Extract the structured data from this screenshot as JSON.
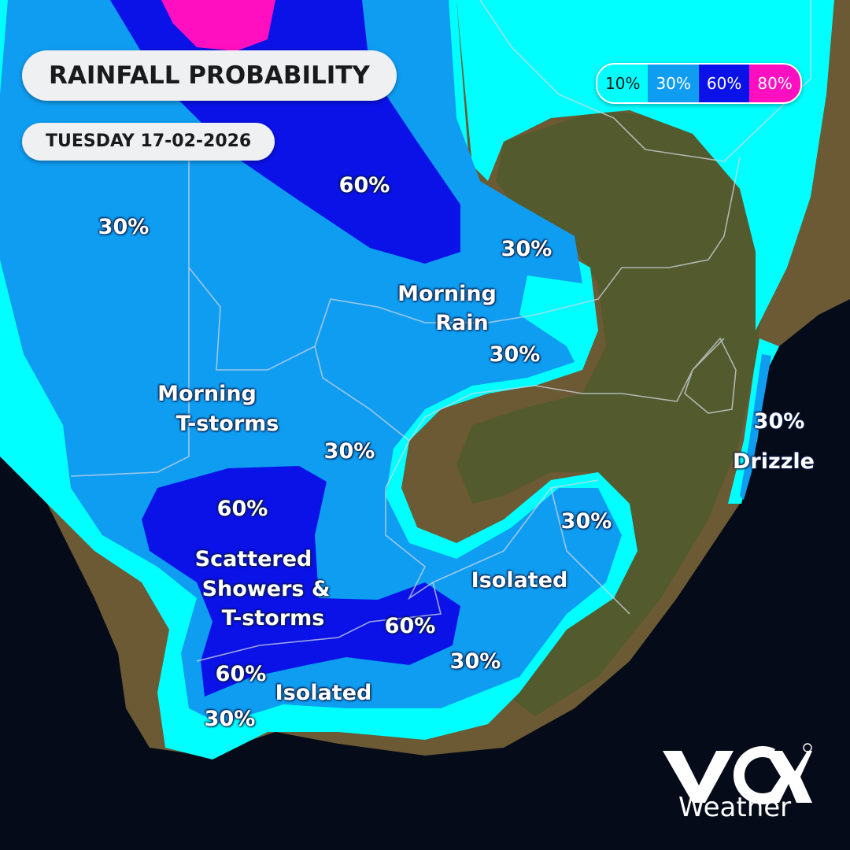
{
  "header": {
    "title": "RAINFALL PROBABILITY",
    "date": "TUESDAY 17-02-2026"
  },
  "legend": [
    {
      "label": "10%",
      "color": "#00ffff",
      "text_color": "#1a1a1a"
    },
    {
      "label": "30%",
      "color": "#0f9df2",
      "text_color": "#ffffff"
    },
    {
      "label": "60%",
      "color": "#0a12e8",
      "text_color": "#ffffff"
    },
    {
      "label": "80%",
      "color": "#ff0fc0",
      "text_color": "#ffffff"
    }
  ],
  "map": {
    "ocean_color": "#050b18",
    "land_colors": [
      "#5c5a2c",
      "#8a6a3a",
      "#4b5a2a"
    ],
    "labels": {
      "west": "30%",
      "north_60": "60%",
      "ne_30_a": "30%",
      "morning_rain_1": "Morning",
      "morning_rain_2": "Rain",
      "ne_30_b": "30%",
      "t_storms_1": "Morning",
      "t_storms_2": "T-storms",
      "central_30": "30%",
      "sw_60": "60%",
      "showers_1": "Scattered",
      "showers_2": "Showers &",
      "showers_3": "T-storms",
      "south_60": "60%",
      "sw2_60": "60%",
      "isolated_south": "Isolated",
      "sw_30": "30%",
      "south_30": "30%",
      "isolated_east": "Isolated",
      "east_30": "30%",
      "coast_30": "30%",
      "drizzle": "Drizzle"
    }
  },
  "brand": {
    "name": "Weather"
  }
}
